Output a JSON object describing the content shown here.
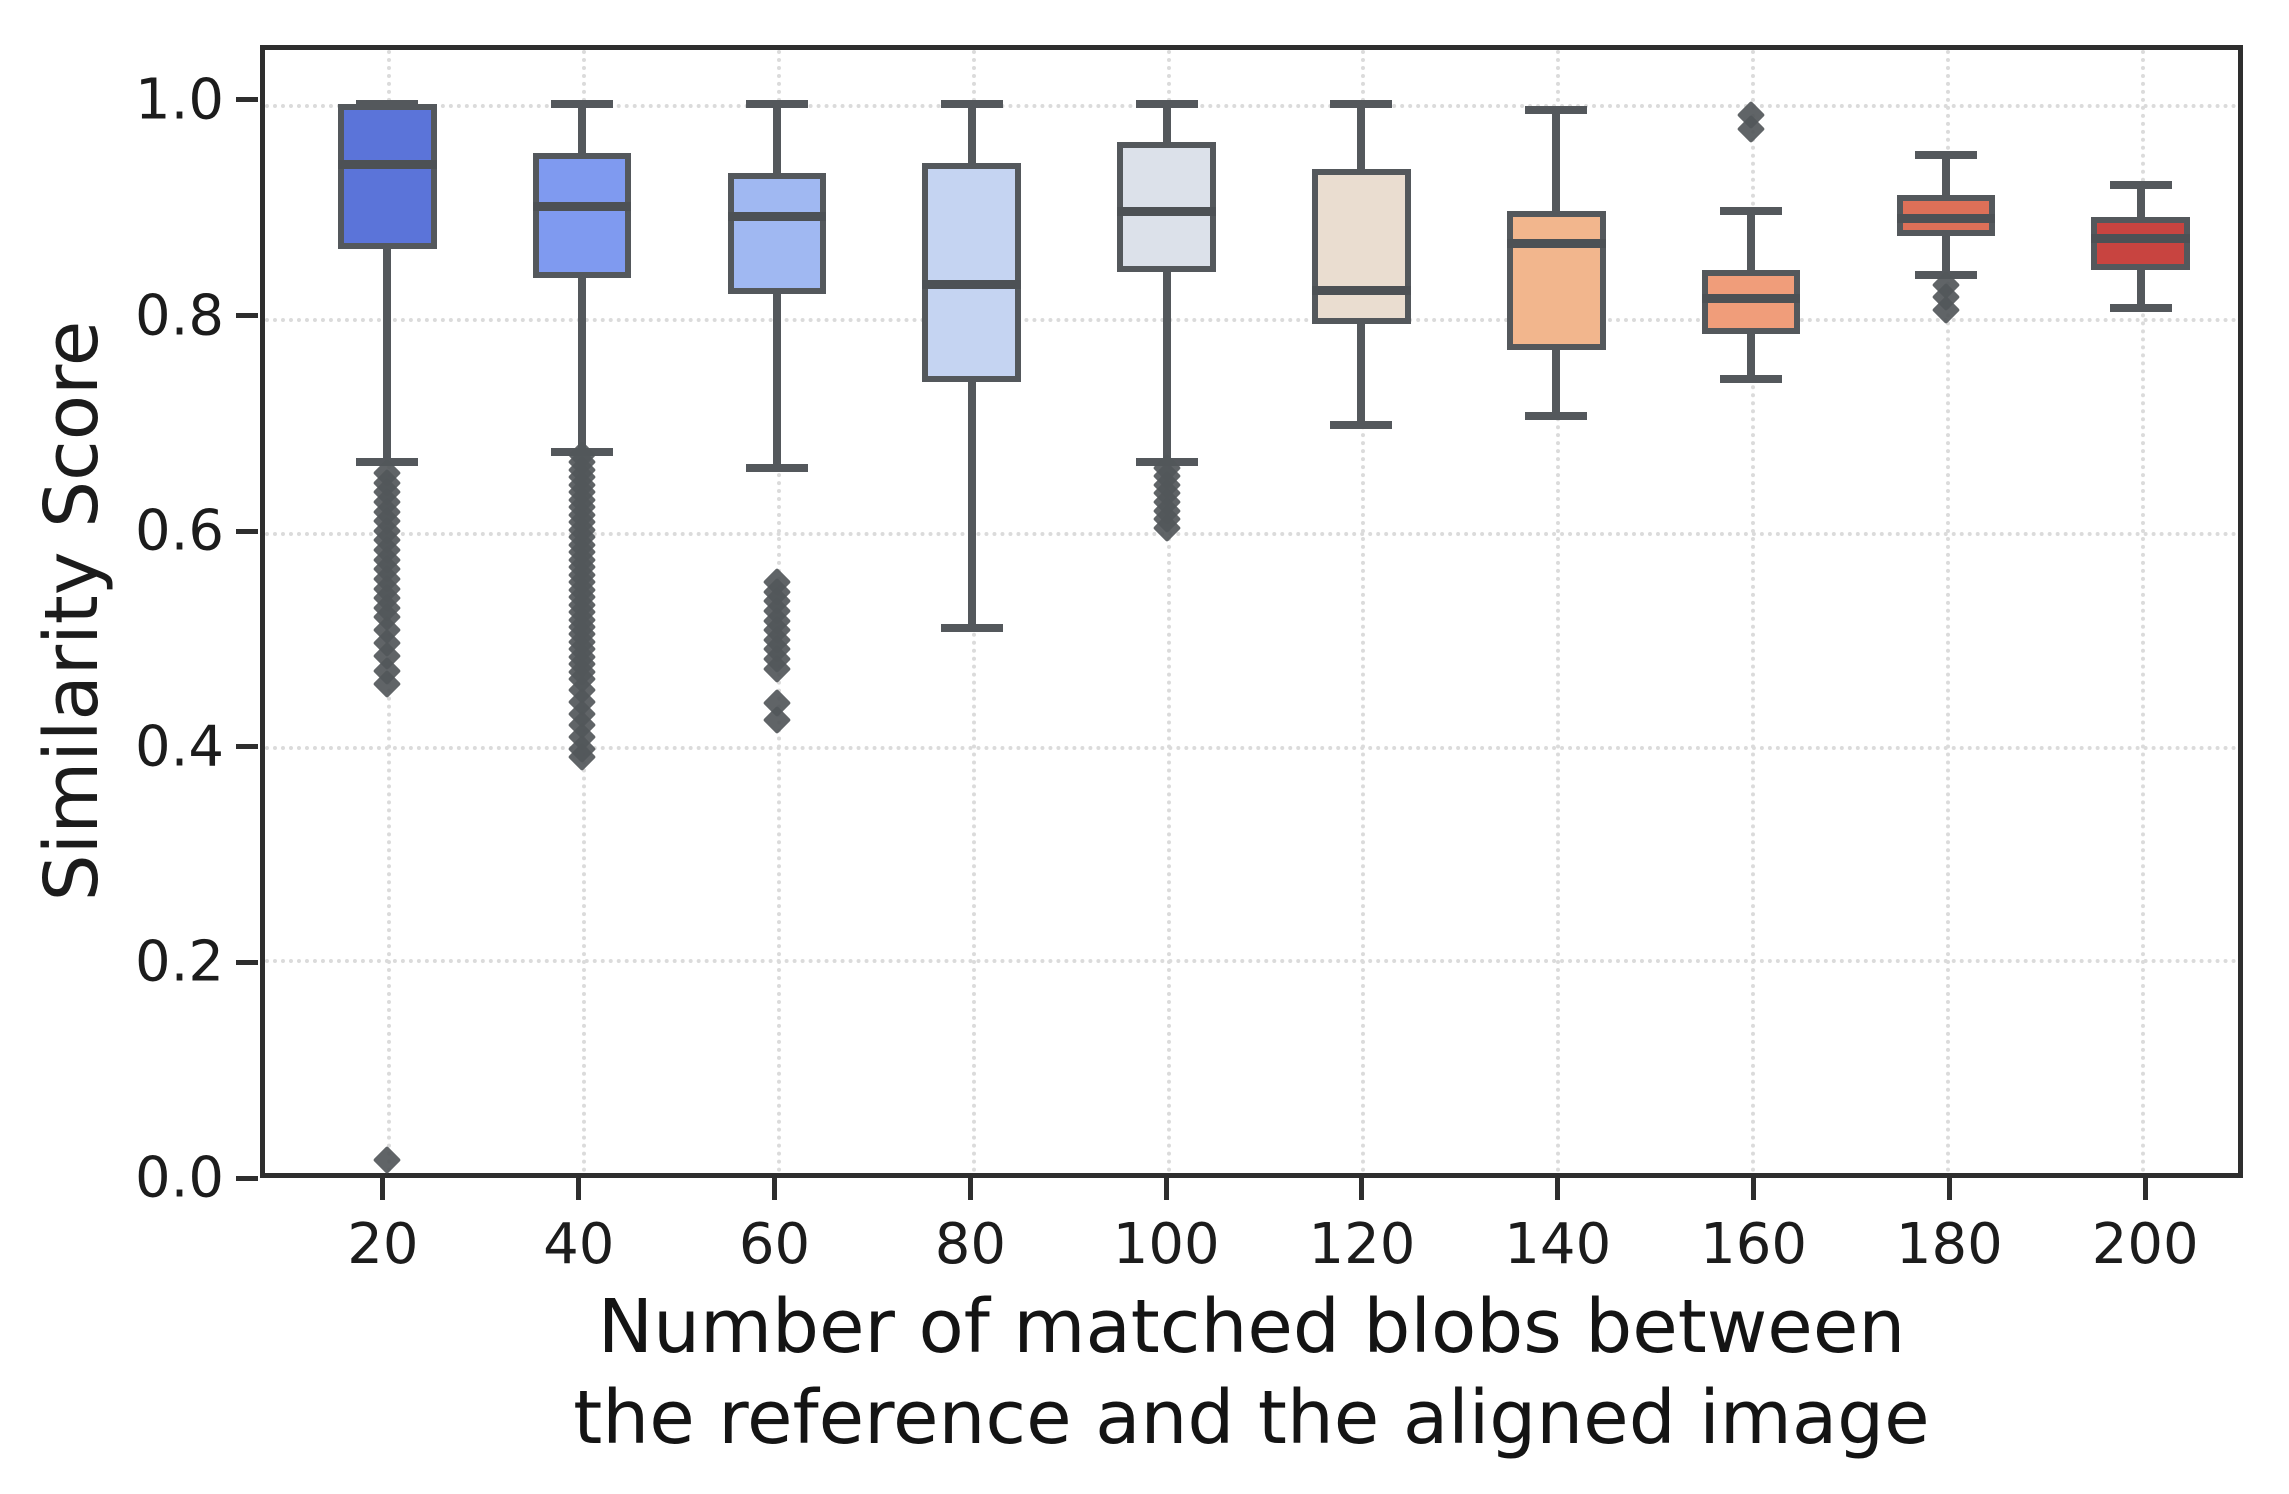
{
  "figure": {
    "ylabel": "Similarity Score",
    "xlabel_line1": "Number of matched blobs between",
    "xlabel_line2": "the reference and the aligned image"
  },
  "chart_data": {
    "type": "boxplot",
    "title": "",
    "xlabel": "Number of matched blobs between the reference and the aligned image",
    "ylabel": "Similarity Score",
    "categories": [
      "20",
      "40",
      "60",
      "80",
      "100",
      "120",
      "140",
      "160",
      "180",
      "200"
    ],
    "ylim": [
      0.0,
      1.051
    ],
    "y_ticks": [
      {
        "value": 0.0,
        "label": "0.0"
      },
      {
        "value": 0.2,
        "label": "0.2"
      },
      {
        "value": 0.4,
        "label": "0.4"
      },
      {
        "value": 0.6,
        "label": "0.6"
      },
      {
        "value": 0.8,
        "label": "0.8"
      },
      {
        "value": 1.0,
        "label": "1.0"
      }
    ],
    "grid": "dotted, both axes",
    "legend": "none",
    "palette": "coolwarm",
    "style_colors": {
      "line": "#54585c",
      "spine": "#2e2e2e",
      "grid": "#dbdbdb",
      "text": "#1c1c1c"
    },
    "x_layout": {
      "first_center_pct": 6.2,
      "spacing_pct": 9.874
    },
    "boxes": [
      {
        "category": "20",
        "color": "#5b74d9",
        "whisker_low": 0.665,
        "q1": 0.865,
        "median": 0.944,
        "q3": 1.0,
        "whisker_high": 1.0,
        "outliers": [
          0.655,
          0.646,
          0.637,
          0.628,
          0.619,
          0.61,
          0.601,
          0.592,
          0.583,
          0.574,
          0.565,
          0.556,
          0.547,
          0.538,
          0.529,
          0.52,
          0.508,
          0.496,
          0.484,
          0.47,
          0.458,
          0.012
        ]
      },
      {
        "category": "40",
        "color": "#7f9af0",
        "whisker_low": 0.675,
        "q1": 0.838,
        "median": 0.905,
        "q3": 0.955,
        "whisker_high": 1.0,
        "outliers": [
          0.672,
          0.665,
          0.658,
          0.651,
          0.644,
          0.637,
          0.63,
          0.623,
          0.616,
          0.609,
          0.602,
          0.595,
          0.588,
          0.581,
          0.574,
          0.567,
          0.56,
          0.553,
          0.546,
          0.539,
          0.532,
          0.525,
          0.518,
          0.511,
          0.504,
          0.497,
          0.49,
          0.483,
          0.476,
          0.469,
          0.462,
          0.452,
          0.441,
          0.43,
          0.419,
          0.408,
          0.397,
          0.389
        ]
      },
      {
        "category": "60",
        "color": "#a0b8f2",
        "whisker_low": 0.66,
        "q1": 0.823,
        "median": 0.895,
        "q3": 0.936,
        "whisker_high": 1.0,
        "outliers": [
          0.553,
          0.544,
          0.535,
          0.526,
          0.517,
          0.508,
          0.499,
          0.49,
          0.481,
          0.472,
          0.44,
          0.424
        ]
      },
      {
        "category": "80",
        "color": "#c5d4f2",
        "whisker_low": 0.51,
        "q1": 0.74,
        "median": 0.832,
        "q3": 0.945,
        "whisker_high": 1.0,
        "outliers": []
      },
      {
        "category": "100",
        "color": "#dce1ea",
        "whisker_low": 0.665,
        "q1": 0.843,
        "median": 0.9,
        "q3": 0.965,
        "whisker_high": 1.0,
        "outliers": [
          0.66,
          0.652,
          0.644,
          0.636,
          0.628,
          0.62,
          0.612,
          0.604
        ]
      },
      {
        "category": "120",
        "color": "#eaddd0",
        "whisker_low": 0.7,
        "q1": 0.795,
        "median": 0.826,
        "q3": 0.94,
        "whisker_high": 1.0,
        "outliers": []
      },
      {
        "category": "140",
        "color": "#f2b68d",
        "whisker_low": 0.708,
        "q1": 0.77,
        "median": 0.87,
        "q3": 0.9,
        "whisker_high": 0.995,
        "outliers": []
      },
      {
        "category": "160",
        "color": "#f09d7a",
        "whisker_low": 0.743,
        "q1": 0.785,
        "median": 0.818,
        "q3": 0.845,
        "whisker_high": 0.9,
        "outliers": [
          0.99,
          0.977
        ]
      },
      {
        "category": "180",
        "color": "#dd7058",
        "whisker_low": 0.84,
        "q1": 0.877,
        "median": 0.893,
        "q3": 0.915,
        "whisker_high": 0.953,
        "outliers": [
          0.831,
          0.82,
          0.808
        ]
      },
      {
        "category": "200",
        "color": "#c84440",
        "whisker_low": 0.81,
        "q1": 0.845,
        "median": 0.875,
        "q3": 0.895,
        "whisker_high": 0.925,
        "outliers": []
      }
    ]
  }
}
